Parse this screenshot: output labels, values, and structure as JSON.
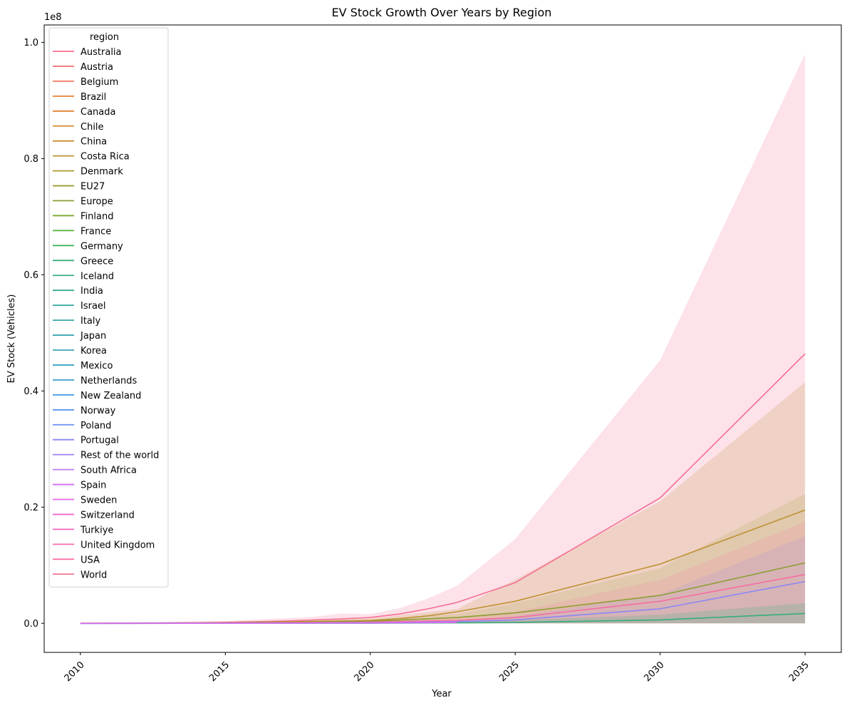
{
  "chart_data": {
    "type": "line",
    "title": "EV Stock Growth Over Years by Region",
    "xlabel": "Year",
    "ylabel": "EV Stock (Vehicles)",
    "y_offset_label": "1e8",
    "xlim": [
      2008.75,
      2036.25
    ],
    "ylim": [
      -5000000,
      103000000
    ],
    "x_ticks": [
      2010,
      2015,
      2020,
      2025,
      2030,
      2035
    ],
    "y_ticks": [
      0,
      20000000,
      40000000,
      60000000,
      80000000,
      100000000
    ],
    "y_tick_labels": [
      "0.0",
      "0.2",
      "0.4",
      "0.6",
      "0.8",
      "1.0"
    ],
    "x_tick_rotation": "45 degrees",
    "grid": false,
    "legend": {
      "title": "region",
      "placement": "top-left",
      "entries": [
        {
          "name": "Australia",
          "color": "#f77189"
        },
        {
          "name": "Austria",
          "color": "#f67474"
        },
        {
          "name": "Belgium",
          "color": "#f3785c"
        },
        {
          "name": "Brazil",
          "color": "#e98131"
        },
        {
          "name": "Canada",
          "color": "#e4822f"
        },
        {
          "name": "Chile",
          "color": "#d98b32"
        },
        {
          "name": "China",
          "color": "#cb8c32"
        },
        {
          "name": "Costa Rica",
          "color": "#bc9232"
        },
        {
          "name": "Denmark",
          "color": "#ad9632"
        },
        {
          "name": "EU27",
          "color": "#9c9a32"
        },
        {
          "name": "Europe",
          "color": "#8e9e32"
        },
        {
          "name": "Finland",
          "color": "#77a632"
        },
        {
          "name": "France",
          "color": "#50b133"
        },
        {
          "name": "Germany",
          "color": "#34b04e"
        },
        {
          "name": "Greece",
          "color": "#35ad7a"
        },
        {
          "name": "Iceland",
          "color": "#36ab8a"
        },
        {
          "name": "India",
          "color": "#37aa95"
        },
        {
          "name": "Israel",
          "color": "#38a89f"
        },
        {
          "name": "Italy",
          "color": "#39a7a8"
        },
        {
          "name": "Japan",
          "color": "#3aa6b0"
        },
        {
          "name": "Korea",
          "color": "#3ba4b8"
        },
        {
          "name": "Mexico",
          "color": "#3ca1c2"
        },
        {
          "name": "Netherlands",
          "color": "#3d9ecd"
        },
        {
          "name": "New Zealand",
          "color": "#4399e0"
        },
        {
          "name": "Norway",
          "color": "#5492f0"
        },
        {
          "name": "Poland",
          "color": "#6c8cf4"
        },
        {
          "name": "Portugal",
          "color": "#8b86f4"
        },
        {
          "name": "Rest of the world",
          "color": "#a27ff4"
        },
        {
          "name": "South Africa",
          "color": "#b979f4"
        },
        {
          "name": "Spain",
          "color": "#d06ef4"
        },
        {
          "name": "Sweden",
          "color": "#e766e2"
        },
        {
          "name": "Switzerland",
          "color": "#f264cf"
        },
        {
          "name": "Turkiye",
          "color": "#f463bf"
        },
        {
          "name": "United Kingdom",
          "color": "#f56aaf"
        },
        {
          "name": "USA",
          "color": "#f66da2"
        },
        {
          "name": "World",
          "color": "#f46f92"
        }
      ]
    },
    "bands": [
      {
        "name": "World",
        "color": "#f77ca0",
        "opacity": 0.22,
        "x": [
          2010,
          2015,
          2018,
          2019,
          2020,
          2021,
          2022,
          2023,
          2025,
          2030,
          2035
        ],
        "low": [
          0,
          0,
          0,
          0,
          0,
          0,
          0,
          0,
          0,
          0,
          0
        ],
        "high": [
          30000,
          400000,
          1100000,
          1700000,
          1600000,
          2600000,
          4300000,
          6500000,
          14500000,
          45300000,
          98000000
        ]
      },
      {
        "name": "China",
        "color": "#bc9232",
        "opacity": 0.2,
        "x": [
          2010,
          2015,
          2020,
          2023,
          2025,
          2030,
          2035
        ],
        "low": [
          0,
          0,
          0,
          0,
          0,
          0,
          0
        ],
        "high": [
          20000,
          200000,
          800000,
          2500000,
          7500000,
          21000000,
          41500000
        ]
      },
      {
        "name": "Europe",
        "color": "#8e9e32",
        "opacity": 0.15,
        "x": [
          2010,
          2015,
          2020,
          2023,
          2025,
          2030,
          2035
        ],
        "low": [
          0,
          0,
          0,
          0,
          0,
          0,
          0
        ],
        "high": [
          10000,
          100000,
          600000,
          1600000,
          3500000,
          9500000,
          22300000
        ]
      },
      {
        "name": "USA",
        "color": "#f66da2",
        "opacity": 0.15,
        "x": [
          2010,
          2015,
          2020,
          2023,
          2025,
          2030,
          2035
        ],
        "low": [
          0,
          0,
          0,
          0,
          0,
          0,
          0
        ],
        "high": [
          10000,
          100000,
          400000,
          1000000,
          2000000,
          7500000,
          17500000
        ]
      },
      {
        "name": "Portugal",
        "color": "#8b86f4",
        "opacity": 0.15,
        "x": [
          2010,
          2015,
          2020,
          2023,
          2025,
          2030,
          2035
        ],
        "low": [
          0,
          0,
          0,
          0,
          0,
          0,
          0
        ],
        "high": [
          5000,
          50000,
          200000,
          500000,
          1200000,
          5000000,
          15000000
        ]
      },
      {
        "name": "Greece",
        "color": "#35ad7a",
        "opacity": 0.2,
        "x": [
          2010,
          2015,
          2020,
          2023,
          2025,
          2030,
          2035
        ],
        "low": [
          0,
          0,
          0,
          0,
          0,
          0,
          0
        ],
        "high": [
          5000,
          20000,
          100000,
          250000,
          500000,
          1500000,
          3500000
        ]
      }
    ],
    "series": [
      {
        "name": "World",
        "color": "#f46f92",
        "x": [
          2010,
          2011,
          2012,
          2013,
          2014,
          2015,
          2016,
          2017,
          2018,
          2019,
          2020,
          2021,
          2022,
          2023,
          2025,
          2030,
          2035
        ],
        "y": [
          10000,
          20000,
          40000,
          70000,
          110000,
          180000,
          260000,
          400000,
          580000,
          750000,
          1000000,
          1600000,
          2500000,
          3600000,
          7000000,
          21600000,
          46400000
        ]
      },
      {
        "name": "China",
        "color": "#bc9232",
        "x": [
          2010,
          2015,
          2020,
          2021,
          2022,
          2023,
          2025,
          2030,
          2035
        ],
        "y": [
          5000,
          90000,
          500000,
          800000,
          1300000,
          2000000,
          3800000,
          10200000,
          19500000
        ]
      },
      {
        "name": "Europe",
        "color": "#8e9e32",
        "x": [
          2010,
          2015,
          2020,
          2023,
          2025,
          2030,
          2035
        ],
        "y": [
          3000,
          50000,
          350000,
          1000000,
          1800000,
          4800000,
          10400000
        ]
      },
      {
        "name": "USA",
        "color": "#f66da2",
        "x": [
          2010,
          2015,
          2020,
          2023,
          2025,
          2030,
          2035
        ],
        "y": [
          2000,
          30000,
          200000,
          500000,
          1000000,
          3800000,
          8400000
        ]
      },
      {
        "name": "Portugal",
        "color": "#8b86f4",
        "x": [
          2010,
          2015,
          2020,
          2023,
          2025,
          2030,
          2035
        ],
        "y": [
          1000,
          10000,
          100000,
          300000,
          600000,
          2500000,
          7200000
        ]
      },
      {
        "name": "Greece",
        "color": "#35ad7a",
        "x": [
          2010,
          2015,
          2020,
          2023,
          2025,
          2030,
          2035
        ],
        "y": [
          0,
          5000,
          20000,
          80000,
          150000,
          600000,
          1700000
        ]
      },
      {
        "name": "Switzerland",
        "color": "#f264cf",
        "x": [
          2010,
          2015,
          2020,
          2023
        ],
        "y": [
          500,
          8000,
          90000,
          200000
        ]
      },
      {
        "name": "Spain",
        "color": "#d06ef4",
        "x": [
          2010,
          2015,
          2020,
          2023
        ],
        "y": [
          500,
          6000,
          60000,
          150000
        ]
      }
    ]
  }
}
